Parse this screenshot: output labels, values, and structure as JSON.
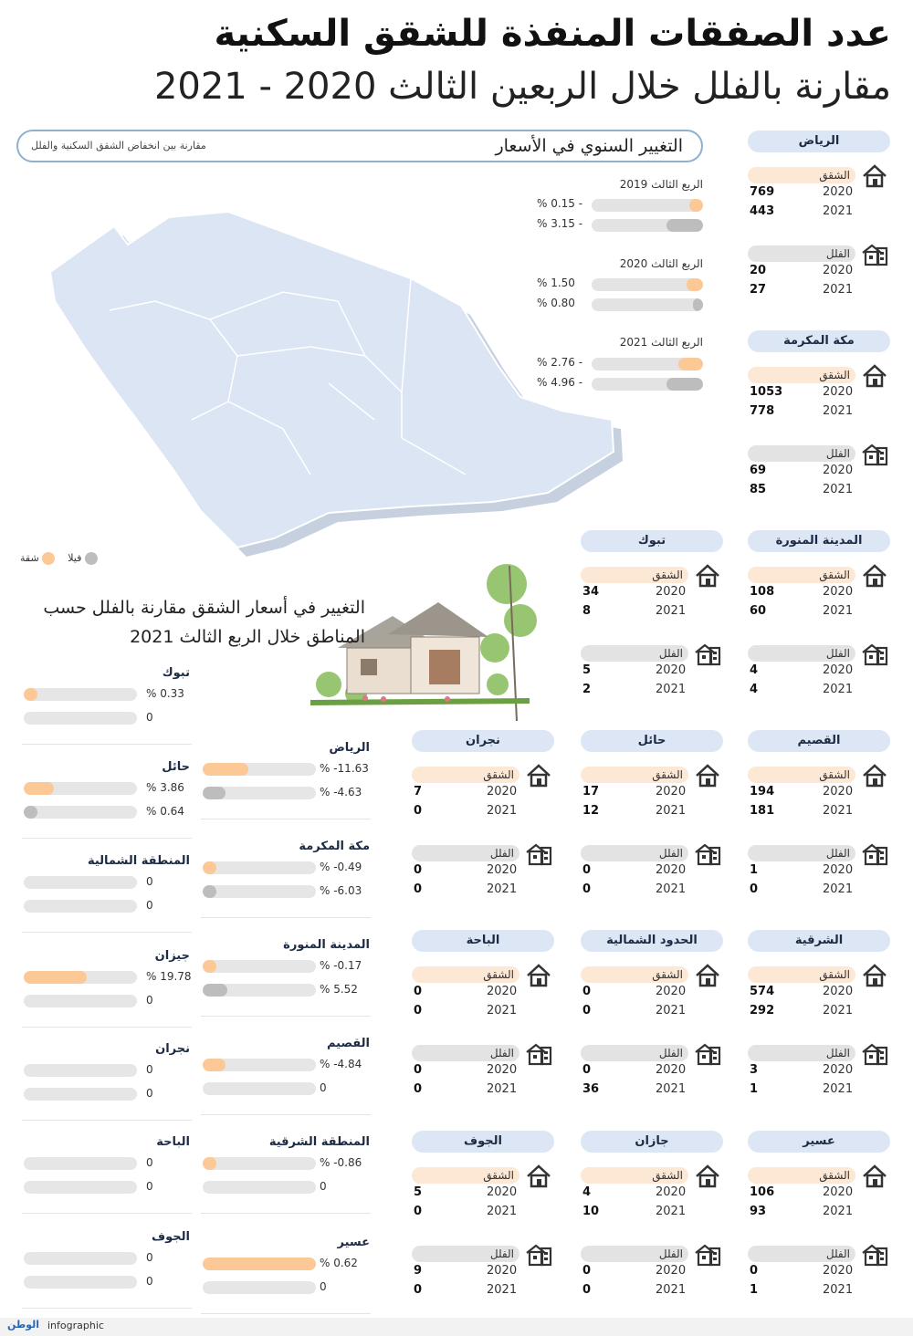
{
  "header": {
    "title": "عدد الصفقات المنفذة للشقق السكنية",
    "subtitle": "مقارنة بالفلل خلال الربعين الثالث 2020 - 2021"
  },
  "price_change": {
    "title": "التغيير السنوي في الأسعار",
    "note": "مقارنة بين انخفاض الشقق السكنية والفلل",
    "periods": [
      {
        "label": "الربع الثالث 2019",
        "apartment": "% 0.15 -",
        "villa": "% 3.15 -",
        "apartment_fill": 0.15,
        "villa_fill": 0.33
      },
      {
        "label": "الربع الثالث 2020",
        "apartment": "% 1.50",
        "villa": "% 0.80",
        "apartment_fill": 0.15,
        "villa_fill": 0.08
      },
      {
        "label": "الربع الثالث 2021",
        "apartment": "% 2.76 -",
        "villa": "% 4.96 -",
        "apartment_fill": 0.22,
        "villa_fill": 0.33
      }
    ]
  },
  "legend": {
    "apartment": "شقة",
    "villa": "فيلا"
  },
  "labels": {
    "apartment": "الشقق",
    "villa": "الفلل"
  },
  "regions": [
    {
      "name": "الرياض",
      "apt": {
        "y1": "2020",
        "v1": "769",
        "y2": "2021",
        "v2": "443"
      },
      "villa": {
        "y1": "2020",
        "v1": "20",
        "y2": "2021",
        "v2": "27"
      }
    },
    {
      "name": "مكة المكرمة",
      "apt": {
        "y1": "2020",
        "v1": "1053",
        "y2": "2021",
        "v2": "778"
      },
      "villa": {
        "y1": "2020",
        "v1": "69",
        "y2": "2021",
        "v2": "85"
      }
    },
    {
      "name": "المدينة المنورة",
      "apt": {
        "y1": "2020",
        "v1": "108",
        "y2": "2021",
        "v2": "60"
      },
      "villa": {
        "y1": "2020",
        "v1": "4",
        "y2": "2021",
        "v2": "4"
      }
    },
    {
      "name": "تبوك",
      "apt": {
        "y1": "2020",
        "v1": "34",
        "y2": "2021",
        "v2": "8"
      },
      "villa": {
        "y1": "2020",
        "v1": "5",
        "y2": "2021",
        "v2": "2"
      }
    },
    {
      "name": "القصيم",
      "apt": {
        "y1": "2020",
        "v1": "194",
        "y2": "2021",
        "v2": "181"
      },
      "villa": {
        "y1": "2020",
        "v1": "1",
        "y2": "2021",
        "v2": "0"
      }
    },
    {
      "name": "حائل",
      "apt": {
        "y1": "2020",
        "v1": "17",
        "y2": "2021",
        "v2": "12"
      },
      "villa": {
        "y1": "2020",
        "v1": "0",
        "y2": "2021",
        "v2": "0"
      }
    },
    {
      "name": "نجران",
      "apt": {
        "y1": "2020",
        "v1": "7",
        "y2": "2021",
        "v2": "0"
      },
      "villa": {
        "y1": "2020",
        "v1": "0",
        "y2": "2021",
        "v2": "0"
      }
    },
    {
      "name": "الشرقية",
      "apt": {
        "y1": "2020",
        "v1": "574",
        "y2": "2021",
        "v2": "292"
      },
      "villa": {
        "y1": "2020",
        "v1": "3",
        "y2": "2021",
        "v2": "1"
      }
    },
    {
      "name": "الحدود الشمالية",
      "apt": {
        "y1": "2020",
        "v1": "0",
        "y2": "2021",
        "v2": "0"
      },
      "villa": {
        "y1": "2020",
        "v1": "0",
        "y2": "2021",
        "v2": "36"
      }
    },
    {
      "name": "الباحة",
      "apt": {
        "y1": "2020",
        "v1": "0",
        "y2": "2021",
        "v2": "0"
      },
      "villa": {
        "y1": "2020",
        "v1": "0",
        "y2": "2021",
        "v2": "0"
      }
    },
    {
      "name": "عسير",
      "apt": {
        "y1": "2020",
        "v1": "106",
        "y2": "2021",
        "v2": "93"
      },
      "villa": {
        "y1": "2020",
        "v1": "0",
        "y2": "2021",
        "v2": "1"
      }
    },
    {
      "name": "جازان",
      "apt": {
        "y1": "2020",
        "v1": "4",
        "y2": "2021",
        "v2": "10"
      },
      "villa": {
        "y1": "2020",
        "v1": "0",
        "y2": "2021",
        "v2": "0"
      }
    },
    {
      "name": "الجوف",
      "apt": {
        "y1": "2020",
        "v1": "5",
        "y2": "2021",
        "v2": "0"
      },
      "villa": {
        "y1": "2020",
        "v1": "9",
        "y2": "2021",
        "v2": "0"
      }
    }
  ],
  "region_change": {
    "title": "التغيير في أسعار الشقق مقارنة بالفلل حسب المناطق خلال الربع الثالث 2021",
    "col_mid": [
      {
        "name": "الرياض",
        "apt": "% -11.63",
        "villa": "% -4.63",
        "apt_fill": 0.4,
        "villa_fill": 0.2
      },
      {
        "name": "مكة المكرمة",
        "apt": "% -0.49",
        "villa": "% -6.03",
        "apt_fill": 0.12,
        "villa_fill": 0.12
      },
      {
        "name": "المدينة المنورة",
        "apt": "% -0.17",
        "villa": "% 5.52",
        "apt_fill": 0.12,
        "villa_fill": 0.22
      },
      {
        "name": "القصيم",
        "apt": "% -4.84",
        "villa": "0",
        "apt_fill": 0.2,
        "villa_fill": 0
      },
      {
        "name": "المنطقة الشرقية",
        "apt": "% -0.86",
        "villa": "0",
        "apt_fill": 0.12,
        "villa_fill": 0
      },
      {
        "name": "عسير",
        "apt": "% 0.62",
        "villa": "0",
        "apt_fill": 1.0,
        "villa_fill": 0
      }
    ],
    "col_left": [
      {
        "name": "تبوك",
        "apt": "% 0.33",
        "villa": "0",
        "apt_fill": 0.12,
        "villa_fill": 0
      },
      {
        "name": "حائل",
        "apt": "% 3.86",
        "villa": "% 0.64",
        "apt_fill": 0.27,
        "villa_fill": 0.12
      },
      {
        "name": "المنطقة الشمالية",
        "apt": "0",
        "villa": "0",
        "apt_fill": 0,
        "villa_fill": 0
      },
      {
        "name": "جيزان",
        "apt": "% 19.78",
        "villa": "0",
        "apt_fill": 0.56,
        "villa_fill": 0
      },
      {
        "name": "نجران",
        "apt": "0",
        "villa": "0",
        "apt_fill": 0,
        "villa_fill": 0
      },
      {
        "name": "الباحة",
        "apt": "0",
        "villa": "0",
        "apt_fill": 0,
        "villa_fill": 0
      },
      {
        "name": "الجوف",
        "apt": "0",
        "villa": "0",
        "apt_fill": 0,
        "villa_fill": 0
      }
    ]
  },
  "footer": {
    "brand": "الوطن",
    "label": "infographic"
  },
  "colors": {
    "apartment": "#fcc896",
    "villa": "#bdbdbd",
    "header_pill": "#dce6f5",
    "map": "#dbe5f4"
  }
}
